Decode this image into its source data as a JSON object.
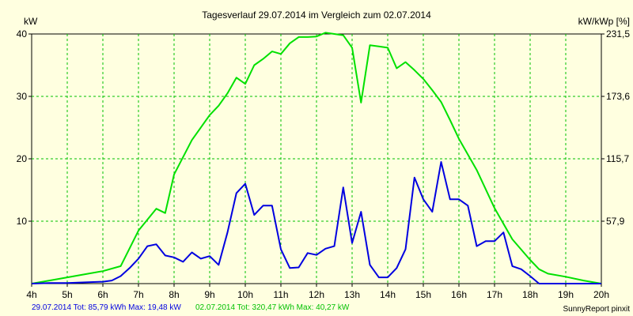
{
  "chart_data": {
    "type": "line",
    "title": "Tagesverlauf 29.07.2014 im Vergleich zum 02.07.2014",
    "ylabel_left": "kW",
    "ylabel_right": "kW/kWp [%]",
    "x_tick_labels": [
      "4h",
      "5h",
      "6h",
      "7h",
      "8h",
      "9h",
      "10h",
      "11h",
      "12h",
      "13h",
      "14h",
      "15h",
      "16h",
      "17h",
      "18h",
      "19h",
      "20h"
    ],
    "xlim": [
      4,
      20
    ],
    "ylim": [
      0,
      40
    ],
    "y_ticks_left": [
      10,
      20,
      30,
      40
    ],
    "y_ticks_right": [
      "57,9",
      "115,7",
      "173,6",
      "231,5"
    ],
    "grid": true,
    "series": [
      {
        "name": "02.07.2014",
        "color": "#00e000",
        "x": [
          4,
          4.5,
          5,
          5.5,
          6,
          6.5,
          7,
          7.5,
          7.75,
          8,
          8.5,
          9,
          9.25,
          9.5,
          9.75,
          10,
          10.25,
          10.5,
          10.75,
          11,
          11.25,
          11.5,
          11.75,
          12,
          12.25,
          12.5,
          12.75,
          13,
          13.25,
          13.5,
          13.75,
          14,
          14.25,
          14.5,
          14.75,
          15,
          15.25,
          15.5,
          15.75,
          16,
          16.5,
          17,
          17.5,
          18,
          18.25,
          18.5,
          19,
          19.5,
          20
        ],
        "y": [
          0,
          0.5,
          1,
          1.5,
          2,
          2.8,
          8.5,
          12,
          11.3,
          17.5,
          23,
          27,
          28.5,
          30.5,
          33,
          32,
          35,
          36,
          37.2,
          36.8,
          38.5,
          39.5,
          39.5,
          39.6,
          40.2,
          40,
          39.8,
          37.8,
          29,
          38.2,
          38,
          37.8,
          34.5,
          35.5,
          34.2,
          32.8,
          31,
          29.1,
          26.2,
          23.2,
          18.2,
          12.1,
          7.1,
          3.8,
          2.3,
          1.6,
          1.1,
          0.5,
          0
        ]
      },
      {
        "name": "29.07.2014",
        "color": "#0000e0",
        "x": [
          4,
          4.5,
          5,
          5.5,
          6,
          6.25,
          6.5,
          6.75,
          7,
          7.25,
          7.5,
          7.75,
          8,
          8.25,
          8.5,
          8.75,
          9,
          9.25,
          9.5,
          9.75,
          10,
          10.25,
          10.5,
          10.75,
          11,
          11.25,
          11.5,
          11.75,
          12,
          12.25,
          12.5,
          12.75,
          13,
          13.25,
          13.5,
          13.75,
          14,
          14.25,
          14.5,
          14.75,
          15,
          15.25,
          15.5,
          15.75,
          16,
          16.25,
          16.5,
          16.75,
          17,
          17.25,
          17.5,
          17.75,
          18,
          18.25,
          18.5,
          19,
          19.5,
          20
        ],
        "y": [
          0,
          0.1,
          0.1,
          0.2,
          0.3,
          0.5,
          1.2,
          2.5,
          4,
          6,
          6.3,
          4.5,
          4.2,
          3.5,
          5,
          4,
          4.4,
          3,
          8.2,
          14.5,
          16,
          11,
          12.5,
          12.5,
          5.5,
          2.5,
          2.6,
          4.9,
          4.6,
          5.6,
          6,
          15.4,
          6.5,
          11.5,
          3,
          1,
          1,
          2.5,
          5.5,
          17,
          13.5,
          11.5,
          19.5,
          13.5,
          13.5,
          12.5,
          6,
          6.8,
          6.8,
          8.2,
          2.8,
          2.3,
          1.2,
          0,
          0,
          0,
          0,
          0
        ]
      }
    ],
    "footer": {
      "series1_text": "29.07.2014 Tot: 85,79 kWh Max: 19,48 kW",
      "series2_text": "02.07.2014 Tot: 320,47 kWh Max: 40,27 kW",
      "credit": "SunnyReport pinxit"
    }
  }
}
